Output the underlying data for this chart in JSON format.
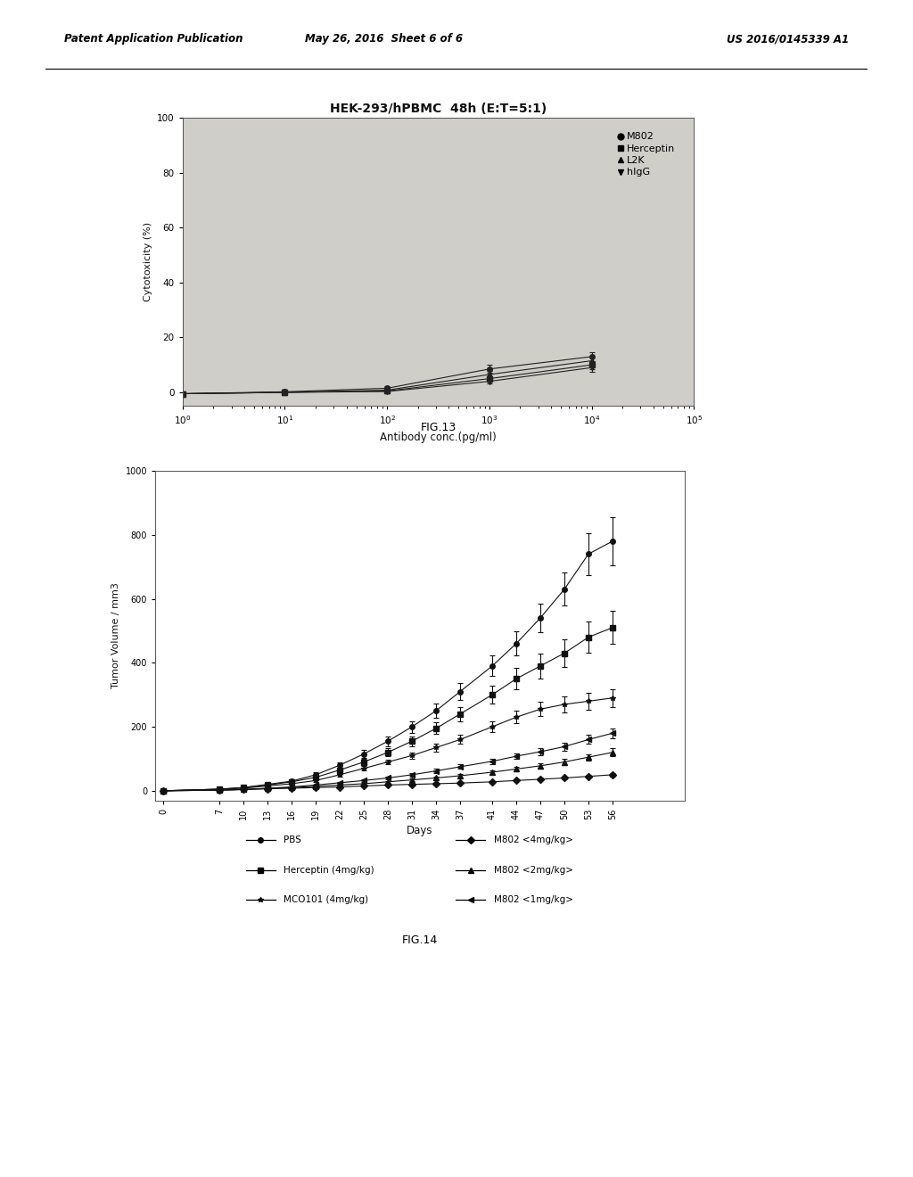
{
  "header_left": "Patent Application Publication",
  "header_center": "May 26, 2016  Sheet 6 of 6",
  "header_right": "US 2016/0145339 A1",
  "fig13": {
    "title": "HEK-293/hPBMC  48h (E:T=5:1)",
    "xlabel": "Antibody conc.(pg/ml)",
    "ylabel": "Cytotoxicity (%)",
    "xlim_log": [
      1.0,
      100000.0
    ],
    "ylim": [
      -5,
      25
    ],
    "yticks": [
      0,
      20,
      40,
      60,
      80,
      100
    ],
    "series": {
      "M802": {
        "marker": "o",
        "color": "#222222",
        "x": [
          1,
          10,
          100,
          1000,
          10000
        ],
        "y": [
          -0.5,
          0.2,
          1.5,
          8.5,
          13.0
        ],
        "yerr": [
          0.5,
          0.5,
          0.8,
          1.5,
          1.5
        ]
      },
      "Herceptin": {
        "marker": "s",
        "color": "#222222",
        "x": [
          1,
          10,
          100,
          1000,
          10000
        ],
        "y": [
          -0.5,
          0.0,
          0.5,
          5.0,
          10.0
        ],
        "yerr": [
          0.5,
          0.5,
          0.5,
          1.0,
          1.5
        ]
      },
      "L2K": {
        "marker": "^",
        "color": "#222222",
        "x": [
          1,
          10,
          100,
          1000,
          10000
        ],
        "y": [
          -0.5,
          0.0,
          0.8,
          6.5,
          11.5
        ],
        "yerr": [
          0.5,
          0.5,
          0.6,
          1.2,
          1.5
        ]
      },
      "hIgG": {
        "marker": "v",
        "color": "#222222",
        "x": [
          1,
          10,
          100,
          1000,
          10000
        ],
        "y": [
          -0.5,
          0.0,
          0.3,
          4.0,
          9.0
        ],
        "yerr": [
          0.5,
          0.5,
          0.5,
          0.8,
          1.5
        ]
      }
    },
    "legend_labels": [
      "M802",
      "Herceptin",
      "L2K",
      "hIgG"
    ],
    "legend_markers": [
      "o",
      "s",
      "^",
      "v"
    ],
    "fig_label": "FIG.13",
    "plot_bg": "#d0cec8"
  },
  "fig14": {
    "xlabel": "Days",
    "ylabel": "Tumor Volume / mm3",
    "xlim": [
      -1,
      65
    ],
    "ylim": [
      -30,
      1000
    ],
    "yticks": [
      0,
      200,
      400,
      600,
      800,
      1000
    ],
    "xticks": [
      0,
      7,
      10,
      13,
      16,
      19,
      22,
      25,
      28,
      31,
      34,
      37,
      41,
      44,
      47,
      50,
      53,
      56
    ],
    "series": {
      "PBS": {
        "marker": "o",
        "color": "#111111",
        "x": [
          0,
          7,
          10,
          13,
          16,
          19,
          22,
          25,
          28,
          31,
          34,
          37,
          41,
          44,
          47,
          50,
          53,
          56
        ],
        "y": [
          0,
          5,
          10,
          20,
          30,
          50,
          80,
          115,
          155,
          200,
          250,
          310,
          390,
          460,
          540,
          630,
          740,
          780
        ],
        "yerr": [
          1,
          2,
          3,
          4,
          5,
          7,
          9,
          12,
          15,
          18,
          22,
          26,
          32,
          38,
          44,
          52,
          65,
          75
        ]
      },
      "Herceptin_4": {
        "marker": "s",
        "color": "#111111",
        "x": [
          0,
          7,
          10,
          13,
          16,
          19,
          22,
          25,
          28,
          31,
          34,
          37,
          41,
          44,
          47,
          50,
          53,
          56
        ],
        "y": [
          0,
          5,
          10,
          18,
          28,
          42,
          65,
          90,
          120,
          155,
          195,
          240,
          300,
          350,
          390,
          430,
          480,
          510
        ],
        "yerr": [
          1,
          2,
          3,
          4,
          5,
          6,
          8,
          10,
          12,
          15,
          18,
          22,
          28,
          33,
          38,
          42,
          48,
          52
        ]
      },
      "MCO101_4": {
        "marker": "*",
        "color": "#111111",
        "x": [
          0,
          7,
          10,
          13,
          16,
          19,
          22,
          25,
          28,
          31,
          34,
          37,
          41,
          44,
          47,
          50,
          53,
          56
        ],
        "y": [
          0,
          5,
          8,
          15,
          22,
          32,
          50,
          70,
          90,
          110,
          135,
          160,
          200,
          230,
          255,
          270,
          280,
          290
        ],
        "yerr": [
          1,
          2,
          3,
          3,
          4,
          5,
          6,
          7,
          8,
          10,
          12,
          14,
          17,
          20,
          22,
          24,
          26,
          28
        ]
      },
      "M802_4": {
        "marker": "D",
        "color": "#111111",
        "x": [
          0,
          7,
          10,
          13,
          16,
          19,
          22,
          25,
          28,
          31,
          34,
          37,
          41,
          44,
          47,
          50,
          53,
          56
        ],
        "y": [
          0,
          2,
          4,
          6,
          8,
          10,
          12,
          15,
          18,
          20,
          22,
          24,
          28,
          32,
          36,
          40,
          45,
          50
        ],
        "yerr": [
          0.5,
          1,
          1,
          1,
          1,
          1,
          1,
          2,
          2,
          2,
          2,
          3,
          3,
          3,
          4,
          4,
          5,
          5
        ]
      },
      "M802_2": {
        "marker": "^",
        "color": "#111111",
        "x": [
          0,
          7,
          10,
          13,
          16,
          19,
          22,
          25,
          28,
          31,
          34,
          37,
          41,
          44,
          47,
          50,
          53,
          56
        ],
        "y": [
          0,
          2,
          4,
          7,
          10,
          14,
          18,
          22,
          28,
          34,
          40,
          47,
          58,
          68,
          78,
          90,
          105,
          120
        ],
        "yerr": [
          0.5,
          1,
          1,
          1,
          2,
          2,
          2,
          3,
          3,
          4,
          4,
          5,
          6,
          7,
          8,
          9,
          10,
          12
        ]
      },
      "M802_1": {
        "marker": "<",
        "color": "#111111",
        "x": [
          0,
          7,
          10,
          13,
          16,
          19,
          22,
          25,
          28,
          31,
          34,
          37,
          41,
          44,
          47,
          50,
          53,
          56
        ],
        "y": [
          0,
          2,
          4,
          8,
          12,
          18,
          25,
          32,
          40,
          50,
          62,
          75,
          92,
          108,
          122,
          138,
          160,
          180
        ],
        "yerr": [
          0.5,
          1,
          1,
          2,
          2,
          2,
          3,
          4,
          4,
          5,
          6,
          7,
          8,
          9,
          10,
          12,
          14,
          16
        ]
      }
    },
    "legend_left": [
      {
        "label": "PBS",
        "marker": "o"
      },
      {
        "label": "Herceptin (4mg/kg)",
        "marker": "s"
      },
      {
        "label": "MCO101 (4mg/kg)",
        "marker": "*"
      }
    ],
    "legend_right": [
      {
        "label": "M802 <4mg/kg>",
        "marker": "D"
      },
      {
        "label": "M802 <2mg/kg>",
        "marker": "^"
      },
      {
        "label": "M802 <1mg/kg>",
        "marker": "<"
      }
    ],
    "fig_label": "FIG.14",
    "plot_bg": "#ffffff"
  },
  "page_bg": "#ffffff",
  "text_color": "#111111"
}
